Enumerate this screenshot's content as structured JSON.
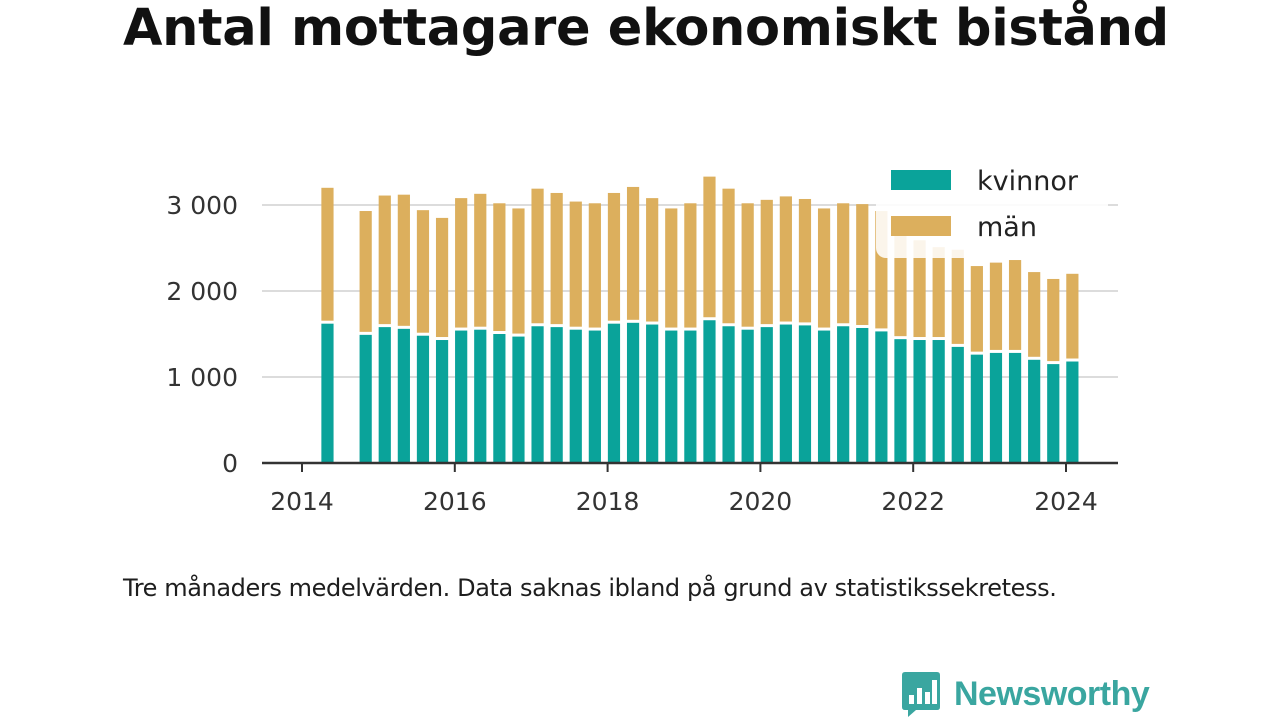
{
  "title": "Antal mottagare ekonomiskt bistånd",
  "caption": "Tre månaders medelvärden. Data saknas ibland på grund av statistikssekretess.",
  "brand": {
    "name": "Newsworthy",
    "color": "#3aa6a0",
    "icon": "newsworthy-chart-icon"
  },
  "chart_data": {
    "type": "bar",
    "stacked": true,
    "title": "Antal mottagare ekonomiskt bistånd",
    "xlabel": "",
    "ylabel": "",
    "x_ticks": [
      "2014",
      "2016",
      "2018",
      "2020",
      "2022",
      "2024"
    ],
    "y_ticks": [
      "0",
      "1 000",
      "2 000",
      "3 000"
    ],
    "ylim": [
      0,
      3500
    ],
    "grid": true,
    "legend_position": "top-right",
    "x": [
      "2014-05",
      "2014-11",
      "2015-02",
      "2015-05",
      "2015-08",
      "2015-11",
      "2016-02",
      "2016-05",
      "2016-08",
      "2016-11",
      "2017-02",
      "2017-05",
      "2017-08",
      "2017-11",
      "2018-02",
      "2018-05",
      "2018-08",
      "2018-11",
      "2019-02",
      "2019-05",
      "2019-08",
      "2019-11",
      "2020-02",
      "2020-05",
      "2020-08",
      "2020-11",
      "2021-02",
      "2021-05",
      "2021-08",
      "2021-11",
      "2022-02",
      "2022-05",
      "2022-08",
      "2022-11",
      "2023-02",
      "2023-05",
      "2023-08",
      "2023-11",
      "2024-02"
    ],
    "series": [
      {
        "name": "kvinnor",
        "color": "#0aa39a",
        "values": [
          1620,
          1490,
          1580,
          1560,
          1480,
          1430,
          1540,
          1550,
          1500,
          1470,
          1590,
          1580,
          1550,
          1540,
          1620,
          1630,
          1610,
          1540,
          1540,
          1660,
          1590,
          1550,
          1580,
          1610,
          1600,
          1540,
          1590,
          1570,
          1530,
          1440,
          1430,
          1430,
          1350,
          1260,
          1280,
          1280,
          1200,
          1150,
          1180
        ]
      },
      {
        "name": "män",
        "color": "#dcaf5d",
        "values": [
          1580,
          1440,
          1530,
          1560,
          1460,
          1420,
          1540,
          1580,
          1520,
          1490,
          1600,
          1560,
          1490,
          1480,
          1520,
          1580,
          1470,
          1420,
          1480,
          1670,
          1600,
          1470,
          1480,
          1490,
          1470,
          1420,
          1430,
          1440,
          1400,
          1220,
          1160,
          1080,
          1130,
          1030,
          1050,
          1080,
          1020,
          990,
          1020
        ]
      }
    ]
  }
}
